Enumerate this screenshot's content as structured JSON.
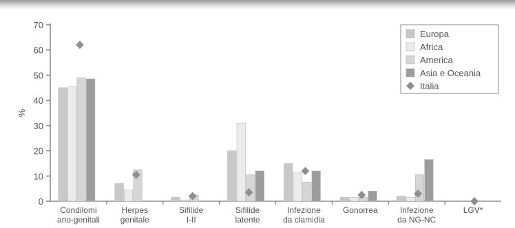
{
  "chart_data": {
    "type": "bar",
    "ylabel": "%",
    "ylim": [
      0,
      70
    ],
    "yticks": [
      "0",
      "10",
      "20",
      "30",
      "40",
      "50",
      "60",
      "70"
    ],
    "grid": false,
    "legend_position": "top-right",
    "categories": [
      [
        "Condilomi",
        "ano-genitali"
      ],
      [
        "Herpes",
        "genitale"
      ],
      [
        "Sifilide",
        "I-II"
      ],
      [
        "Sifilide",
        "latente"
      ],
      [
        "Infezione",
        "da clamidia"
      ],
      [
        "Gonorrea"
      ],
      [
        "Infezione",
        "da NG-NC"
      ],
      [
        "LGV*"
      ]
    ],
    "series": [
      {
        "name": "Europa",
        "kind": "bar",
        "color": "#c8c8c8",
        "values": [
          45,
          7,
          1.5,
          20,
          15,
          1.5,
          2,
          0
        ]
      },
      {
        "name": "Africa",
        "kind": "bar",
        "color": "#ebebeb",
        "values": [
          45.5,
          4.5,
          0.5,
          31,
          11.5,
          1.5,
          1.5,
          0
        ]
      },
      {
        "name": "America",
        "kind": "bar",
        "color": "#d6d6d6",
        "values": [
          49,
          12.5,
          2.5,
          10.5,
          7.5,
          1.5,
          10.5,
          0
        ]
      },
      {
        "name": "Asia e Oceania",
        "kind": "bar",
        "color": "#9c9c9c",
        "values": [
          48.5,
          0,
          0,
          12,
          12,
          4,
          16.5,
          0
        ]
      },
      {
        "name": "Italia",
        "kind": "marker",
        "color": "#8f8f8f",
        "values": [
          62,
          10.5,
          2,
          3.5,
          12,
          2.5,
          3,
          0
        ]
      }
    ]
  }
}
